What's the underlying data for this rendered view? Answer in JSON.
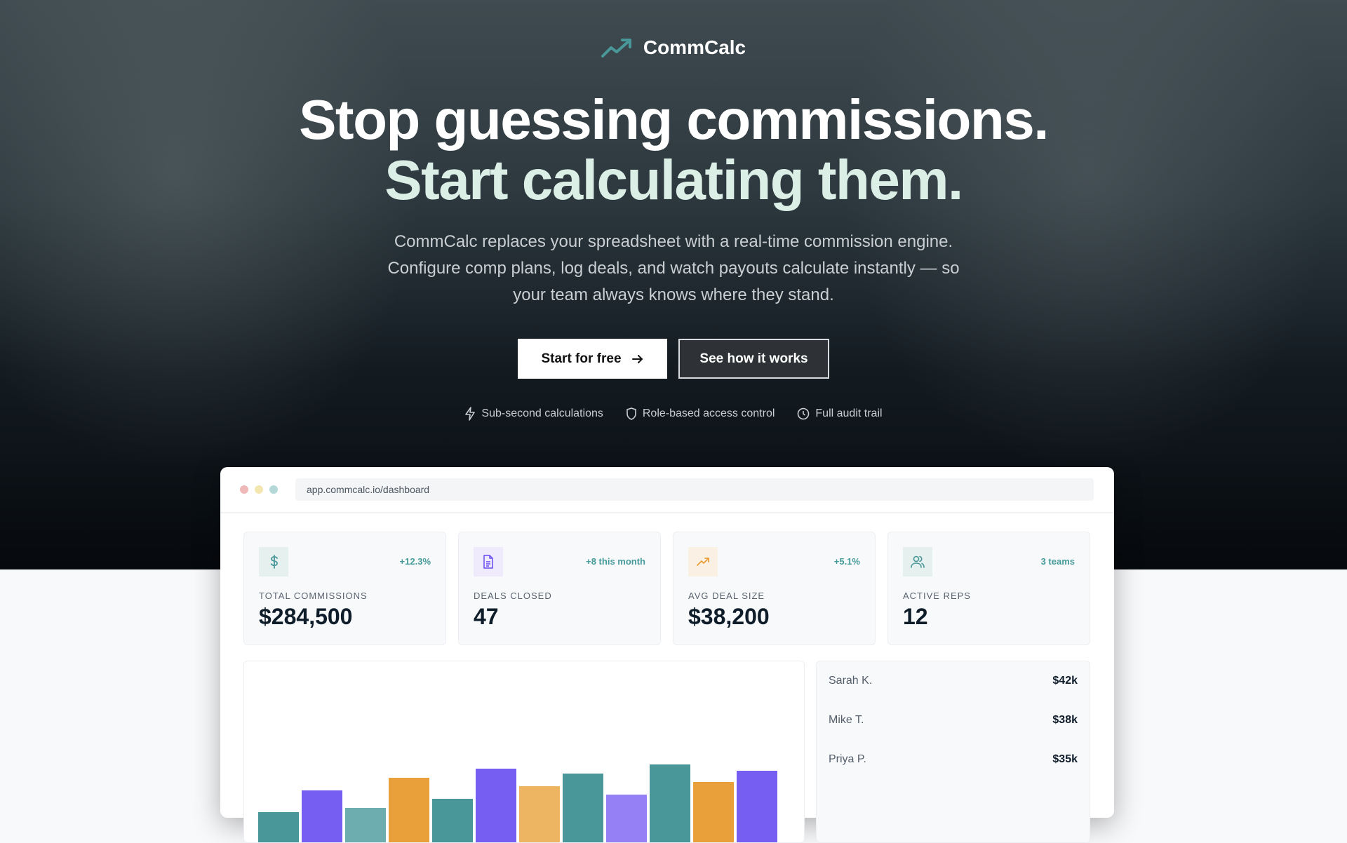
{
  "brand": {
    "name": "CommCalc",
    "accent": "#4a9799"
  },
  "hero": {
    "title_line1": "Stop guessing commissions.",
    "title_line2": "Start calculating them.",
    "subtitle": [
      "CommCalc replaces your spreadsheet with a real-time commission engine.",
      "Configure comp plans, log deals, and watch payouts calculate instantly — so",
      "your team always knows where they stand."
    ],
    "primary_cta": "Start for free",
    "secondary_cta": "See how it works",
    "features": [
      {
        "icon": "lightning-icon",
        "label": "Sub-second calculations"
      },
      {
        "icon": "shield-icon",
        "label": "Role-based access control"
      },
      {
        "icon": "clock-icon",
        "label": "Full audit trail"
      }
    ]
  },
  "dashboard": {
    "url": "app.commcalc.io/dashboard",
    "stats": [
      {
        "icon": "dollar-icon",
        "change": "+12.3%",
        "label": "TOTAL COMMISSIONS",
        "value": "$284,500",
        "color": "#4a9799",
        "bg": "#e6f0ef"
      },
      {
        "icon": "document-icon",
        "change": "+8 this month",
        "label": "DEALS CLOSED",
        "value": "47",
        "color": "#775ef2",
        "bg": "#efebfd"
      },
      {
        "icon": "trending-up-icon",
        "change": "+5.1%",
        "label": "AVG DEAL SIZE",
        "value": "$38,200",
        "color": "#e9a03b",
        "bg": "#fbf0e4"
      },
      {
        "icon": "users-icon",
        "change": "3 teams",
        "label": "ACTIVE REPS",
        "value": "12",
        "color": "#4a9799",
        "bg": "#e6f0ef"
      }
    ],
    "leaderboard": [
      {
        "name": "Sarah K.",
        "amount": "$42k"
      },
      {
        "name": "Mike T.",
        "amount": "$38k"
      },
      {
        "name": "Priya P.",
        "amount": "$35k"
      }
    ]
  },
  "chart_data": {
    "type": "bar",
    "values": [
      83,
      114,
      89,
      132,
      102,
      145,
      120,
      138,
      108,
      151,
      126,
      142
    ],
    "colors": [
      "#4a9799",
      "#775ef2",
      "#6eadaf",
      "#e9a03b",
      "#4a9799",
      "#775ef2",
      "#edb462",
      "#4a9799",
      "#9580f6",
      "#4a9799",
      "#e9a03b",
      "#775ef2"
    ]
  }
}
